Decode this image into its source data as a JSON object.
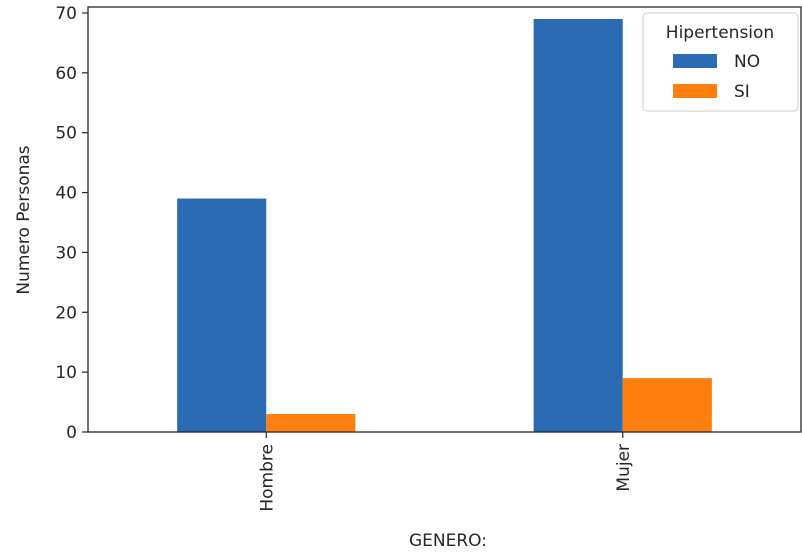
{
  "chart_data": {
    "type": "bar",
    "categories": [
      "Hombre",
      "Mujer"
    ],
    "series": [
      {
        "name": "NO",
        "values": [
          39,
          69
        ],
        "color": "#2b6bb3"
      },
      {
        "name": "SI",
        "values": [
          3,
          9
        ],
        "color": "#ff7f0e"
      }
    ],
    "title": "",
    "xlabel": "GENERO:",
    "ylabel": "Numero Personas",
    "ylim": [
      0,
      71
    ],
    "yticks": [
      0,
      10,
      20,
      30,
      40,
      50,
      60,
      70
    ],
    "grid": false,
    "legend": {
      "title": "Hipertension",
      "position": "top-right"
    }
  }
}
